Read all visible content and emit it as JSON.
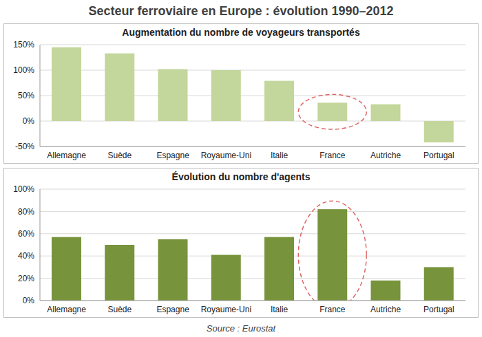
{
  "title": "Secteur ferroviaire en Europe : évolution 1990–2012",
  "source": "Source : Eurostat",
  "chart_data": [
    {
      "type": "bar",
      "title": "Augmentation du nombre de voyageurs transportés",
      "categories": [
        "Allemagne",
        "Suède",
        "Espagne",
        "Royaume-Uni",
        "Italie",
        "France",
        "Autriche",
        "Portugal"
      ],
      "values": [
        145,
        133,
        102,
        100,
        79,
        36,
        33,
        -42
      ],
      "color": "#c3d69b",
      "ylim": [
        -50,
        150
      ],
      "yticks": [
        {
          "value": -50,
          "label": "-50%"
        },
        {
          "value": 0,
          "label": "0%"
        },
        {
          "value": 50,
          "label": "50%"
        },
        {
          "value": 100,
          "label": "100%"
        },
        {
          "value": 150,
          "label": "150%"
        }
      ],
      "grid": true
    },
    {
      "type": "bar",
      "title": "Évolution du nombre d'agents",
      "categories": [
        "Allemagne",
        "Suède",
        "Espagne",
        "Royaume-Uni",
        "Italie",
        "France",
        "Autriche",
        "Portugal"
      ],
      "values": [
        57,
        50,
        55,
        41,
        57,
        82,
        18,
        30
      ],
      "color": "#77933c",
      "ylim": [
        0,
        100
      ],
      "yticks": [
        {
          "value": 0,
          "label": "0%"
        },
        {
          "value": 20,
          "label": "20%"
        },
        {
          "value": 40,
          "label": "40%"
        },
        {
          "value": 60,
          "label": "60%"
        },
        {
          "value": 80,
          "label": "80%"
        },
        {
          "value": 100,
          "label": "100%"
        }
      ],
      "grid": true
    }
  ]
}
